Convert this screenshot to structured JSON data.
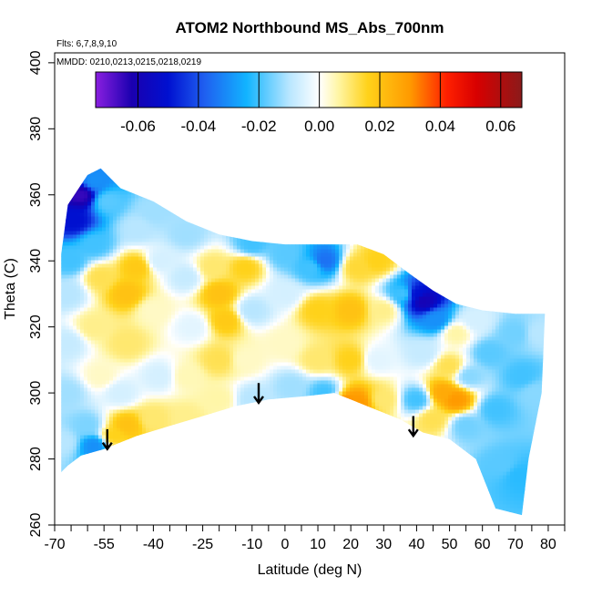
{
  "chart_data": {
    "type": "heatmap",
    "title": "ATOM2 Northbound MS_Abs_700nm",
    "annotations": [
      "Flts: 6,7,8,9,10",
      "MMDD: 0210,0213,0215,0218,0219"
    ],
    "xlabel": "Latitude (deg N)",
    "ylabel": "Theta (C)",
    "xlim": [
      -70,
      85
    ],
    "ylim": [
      260,
      403
    ],
    "x_ticks": [
      -70,
      -55,
      -40,
      -25,
      -10,
      0,
      10,
      20,
      30,
      40,
      50,
      60,
      70,
      80
    ],
    "x_ticks_minor": [
      -65,
      -60,
      -50,
      -45,
      -35,
      -30,
      -20,
      -15,
      -5,
      5,
      15,
      25,
      35,
      45,
      55,
      65,
      75,
      85
    ],
    "y_ticks": [
      260,
      280,
      300,
      320,
      340,
      360,
      380,
      400
    ],
    "colorbar": {
      "min": -0.074,
      "max": 0.067,
      "ticks": [
        -0.06,
        -0.04,
        -0.02,
        0.0,
        0.02,
        0.04,
        0.06
      ],
      "tick_labels": [
        "-0.06",
        "-0.04",
        "-0.02",
        "0.00",
        "0.02",
        "0.04",
        "0.06"
      ],
      "stops": [
        {
          "v": -0.074,
          "color": "#8a1fe0"
        },
        {
          "v": -0.062,
          "color": "#1a00b0"
        },
        {
          "v": -0.05,
          "color": "#0010d0"
        },
        {
          "v": -0.038,
          "color": "#1f5ff0"
        },
        {
          "v": -0.024,
          "color": "#12b4ff"
        },
        {
          "v": -0.01,
          "color": "#b8e6ff"
        },
        {
          "v": 0.0,
          "color": "#ffffff"
        },
        {
          "v": 0.006,
          "color": "#fff6a8"
        },
        {
          "v": 0.016,
          "color": "#ffd21a"
        },
        {
          "v": 0.03,
          "color": "#ff9a00"
        },
        {
          "v": 0.042,
          "color": "#ff2000"
        },
        {
          "v": 0.052,
          "color": "#d80000"
        },
        {
          "v": 0.067,
          "color": "#8b1a1a"
        }
      ]
    },
    "coverage_boundary": [
      [
        -68,
        276
      ],
      [
        -68,
        342
      ],
      [
        -66,
        357
      ],
      [
        -60,
        366
      ],
      [
        -56,
        368
      ],
      [
        -50,
        362
      ],
      [
        -40,
        358
      ],
      [
        -30,
        352
      ],
      [
        -20,
        348
      ],
      [
        -10,
        346
      ],
      [
        0,
        345
      ],
      [
        10,
        345
      ],
      [
        22,
        345
      ],
      [
        30,
        342
      ],
      [
        38,
        336
      ],
      [
        45,
        331
      ],
      [
        52,
        327
      ],
      [
        60,
        325
      ],
      [
        70,
        324
      ],
      [
        79,
        324
      ],
      [
        78,
        300
      ],
      [
        74,
        280
      ],
      [
        72,
        263
      ],
      [
        64,
        265
      ],
      [
        58,
        280
      ],
      [
        50,
        286
      ],
      [
        42,
        288
      ],
      [
        35,
        292
      ],
      [
        25,
        296
      ],
      [
        15,
        300
      ],
      [
        6,
        299
      ],
      [
        -5,
        298
      ],
      [
        -15,
        296
      ],
      [
        -25,
        293
      ],
      [
        -35,
        290
      ],
      [
        -45,
        287
      ],
      [
        -55,
        283
      ],
      [
        -62,
        281
      ],
      [
        -66,
        278
      ]
    ],
    "data_points": [
      {
        "x": -67,
        "y": 285,
        "v": -0.01
      },
      {
        "x": -66,
        "y": 300,
        "v": -0.012
      },
      {
        "x": -66,
        "y": 315,
        "v": -0.008
      },
      {
        "x": -66,
        "y": 330,
        "v": -0.01
      },
      {
        "x": -65,
        "y": 340,
        "v": -0.02
      },
      {
        "x": -64,
        "y": 352,
        "v": -0.05
      },
      {
        "x": -62,
        "y": 360,
        "v": -0.065
      },
      {
        "x": -58,
        "y": 364,
        "v": -0.03
      },
      {
        "x": -54,
        "y": 358,
        "v": -0.018
      },
      {
        "x": -58,
        "y": 345,
        "v": -0.02
      },
      {
        "x": -56,
        "y": 335,
        "v": 0.012
      },
      {
        "x": -58,
        "y": 320,
        "v": 0.008
      },
      {
        "x": -56,
        "y": 305,
        "v": 0.004
      },
      {
        "x": -60,
        "y": 290,
        "v": -0.015
      },
      {
        "x": -58,
        "y": 284,
        "v": -0.03
      },
      {
        "x": -52,
        "y": 287,
        "v": 0.016
      },
      {
        "x": -48,
        "y": 290,
        "v": 0.02
      },
      {
        "x": -50,
        "y": 300,
        "v": -0.006
      },
      {
        "x": -48,
        "y": 315,
        "v": 0.01
      },
      {
        "x": -48,
        "y": 330,
        "v": 0.02
      },
      {
        "x": -45,
        "y": 338,
        "v": 0.018
      },
      {
        "x": -45,
        "y": 350,
        "v": -0.01
      },
      {
        "x": -40,
        "y": 355,
        "v": -0.012
      },
      {
        "x": -38,
        "y": 340,
        "v": -0.006
      },
      {
        "x": -40,
        "y": 325,
        "v": 0.004
      },
      {
        "x": -38,
        "y": 305,
        "v": -0.006
      },
      {
        "x": -40,
        "y": 292,
        "v": 0.01
      },
      {
        "x": -30,
        "y": 292,
        "v": 0.008
      },
      {
        "x": -30,
        "y": 305,
        "v": 0.005
      },
      {
        "x": -28,
        "y": 320,
        "v": -0.004
      },
      {
        "x": -30,
        "y": 335,
        "v": -0.008
      },
      {
        "x": -30,
        "y": 348,
        "v": -0.012
      },
      {
        "x": -22,
        "y": 338,
        "v": 0.01
      },
      {
        "x": -20,
        "y": 330,
        "v": 0.02
      },
      {
        "x": -18,
        "y": 322,
        "v": 0.018
      },
      {
        "x": -20,
        "y": 310,
        "v": 0.012
      },
      {
        "x": -20,
        "y": 298,
        "v": 0.006
      },
      {
        "x": -10,
        "y": 298,
        "v": -0.01
      },
      {
        "x": -12,
        "y": 310,
        "v": 0.004
      },
      {
        "x": -10,
        "y": 325,
        "v": -0.01
      },
      {
        "x": -12,
        "y": 338,
        "v": 0.016
      },
      {
        "x": -10,
        "y": 345,
        "v": -0.02
      },
      {
        "x": 0,
        "y": 342,
        "v": -0.018
      },
      {
        "x": 0,
        "y": 330,
        "v": -0.006
      },
      {
        "x": 0,
        "y": 315,
        "v": 0.004
      },
      {
        "x": 2,
        "y": 302,
        "v": -0.012
      },
      {
        "x": 8,
        "y": 338,
        "v": -0.02
      },
      {
        "x": 12,
        "y": 340,
        "v": -0.035
      },
      {
        "x": 10,
        "y": 325,
        "v": 0.016
      },
      {
        "x": 10,
        "y": 310,
        "v": 0.01
      },
      {
        "x": 12,
        "y": 300,
        "v": -0.02
      },
      {
        "x": 18,
        "y": 296,
        "v": 0.035
      },
      {
        "x": 22,
        "y": 297,
        "v": 0.03
      },
      {
        "x": 20,
        "y": 310,
        "v": 0.016
      },
      {
        "x": 20,
        "y": 325,
        "v": 0.02
      },
      {
        "x": 22,
        "y": 338,
        "v": 0.014
      },
      {
        "x": 28,
        "y": 340,
        "v": 0.016
      },
      {
        "x": 30,
        "y": 325,
        "v": 0.008
      },
      {
        "x": 28,
        "y": 310,
        "v": -0.004
      },
      {
        "x": 30,
        "y": 298,
        "v": 0.01
      },
      {
        "x": 36,
        "y": 330,
        "v": -0.02
      },
      {
        "x": 40,
        "y": 330,
        "v": -0.05
      },
      {
        "x": 42,
        "y": 328,
        "v": -0.06
      },
      {
        "x": 46,
        "y": 322,
        "v": -0.03
      },
      {
        "x": 42,
        "y": 312,
        "v": -0.008
      },
      {
        "x": 40,
        "y": 298,
        "v": -0.02
      },
      {
        "x": 45,
        "y": 292,
        "v": 0.012
      },
      {
        "x": 48,
        "y": 300,
        "v": 0.026
      },
      {
        "x": 52,
        "y": 298,
        "v": 0.03
      },
      {
        "x": 50,
        "y": 308,
        "v": 0.012
      },
      {
        "x": 52,
        "y": 318,
        "v": 0.006
      },
      {
        "x": 58,
        "y": 322,
        "v": -0.006
      },
      {
        "x": 56,
        "y": 305,
        "v": -0.014
      },
      {
        "x": 55,
        "y": 290,
        "v": -0.016
      },
      {
        "x": 62,
        "y": 312,
        "v": -0.018
      },
      {
        "x": 64,
        "y": 295,
        "v": -0.02
      },
      {
        "x": 66,
        "y": 278,
        "v": -0.018
      },
      {
        "x": 70,
        "y": 318,
        "v": -0.016
      },
      {
        "x": 72,
        "y": 305,
        "v": -0.02
      },
      {
        "x": 71,
        "y": 275,
        "v": -0.022
      },
      {
        "x": 77,
        "y": 318,
        "v": -0.01
      },
      {
        "x": 76,
        "y": 300,
        "v": -0.014
      }
    ],
    "arrows": [
      {
        "x": -54,
        "y_from": 289,
        "y_to": 283
      },
      {
        "x": -8,
        "y_from": 303,
        "y_to": 297
      },
      {
        "x": 39,
        "y_from": 293,
        "y_to": 287
      }
    ]
  }
}
